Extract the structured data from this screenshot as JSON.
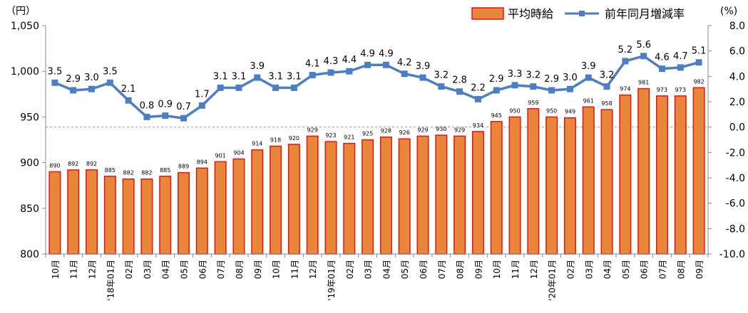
{
  "chart_data": {
    "type": "bar",
    "left_unit": "（円）",
    "right_unit": "(%)",
    "legend_placement": "top-right",
    "grid": false,
    "zero_reference_line": true,
    "categories": [
      "10月",
      "11月",
      "12月",
      "'18年01月",
      "02月",
      "03月",
      "04月",
      "05月",
      "06月",
      "07月",
      "08月",
      "09月",
      "10月",
      "11月",
      "12月",
      "'19年01月",
      "02月",
      "03月",
      "04月",
      "05月",
      "06月",
      "07月",
      "08月",
      "09月",
      "10月",
      "11月",
      "12月",
      "'20年01月",
      "02月",
      "03月",
      "04月",
      "05月",
      "06月",
      "07月",
      "08月",
      "09月"
    ],
    "series": [
      {
        "name": "平均時給",
        "kind": "bar",
        "axis": "left",
        "color": "#E8873C",
        "border_color": "#E8140A",
        "values": [
          890,
          892,
          892,
          885,
          882,
          882,
          885,
          889,
          894,
          901,
          904,
          914,
          918,
          920,
          929,
          923,
          921,
          925,
          928,
          926,
          929,
          930,
          929,
          934,
          945,
          950,
          959,
          950,
          949,
          961,
          958,
          974,
          981,
          973,
          973,
          982
        ]
      },
      {
        "name": "前年同月増減率",
        "kind": "line",
        "axis": "right",
        "color": "#4A7FC7",
        "values": [
          3.5,
          2.9,
          3.0,
          3.5,
          2.1,
          0.8,
          0.9,
          0.7,
          1.7,
          3.1,
          3.1,
          3.9,
          3.1,
          3.1,
          4.1,
          4.3,
          4.4,
          4.9,
          4.9,
          4.2,
          3.9,
          3.2,
          2.8,
          2.2,
          2.9,
          3.3,
          3.2,
          2.9,
          3.0,
          3.9,
          3.2,
          5.2,
          5.6,
          4.6,
          4.7,
          5.1
        ]
      }
    ],
    "y_left": {
      "min": 800,
      "max": 1050,
      "ticks": [
        "800",
        "850",
        "900",
        "950",
        "1,000",
        "1,050"
      ],
      "tick_values": [
        800,
        850,
        900,
        950,
        1000,
        1050
      ]
    },
    "y_right": {
      "min": -10,
      "max": 8,
      "ticks": [
        "-10.0",
        "-8.0",
        "-6.0",
        "-4.0",
        "-2.0",
        "0.0",
        "2.0",
        "4.0",
        "6.0",
        "8.0"
      ],
      "tick_values": [
        -10,
        -8,
        -6,
        -4,
        -2,
        0,
        2,
        4,
        6,
        8
      ]
    }
  }
}
